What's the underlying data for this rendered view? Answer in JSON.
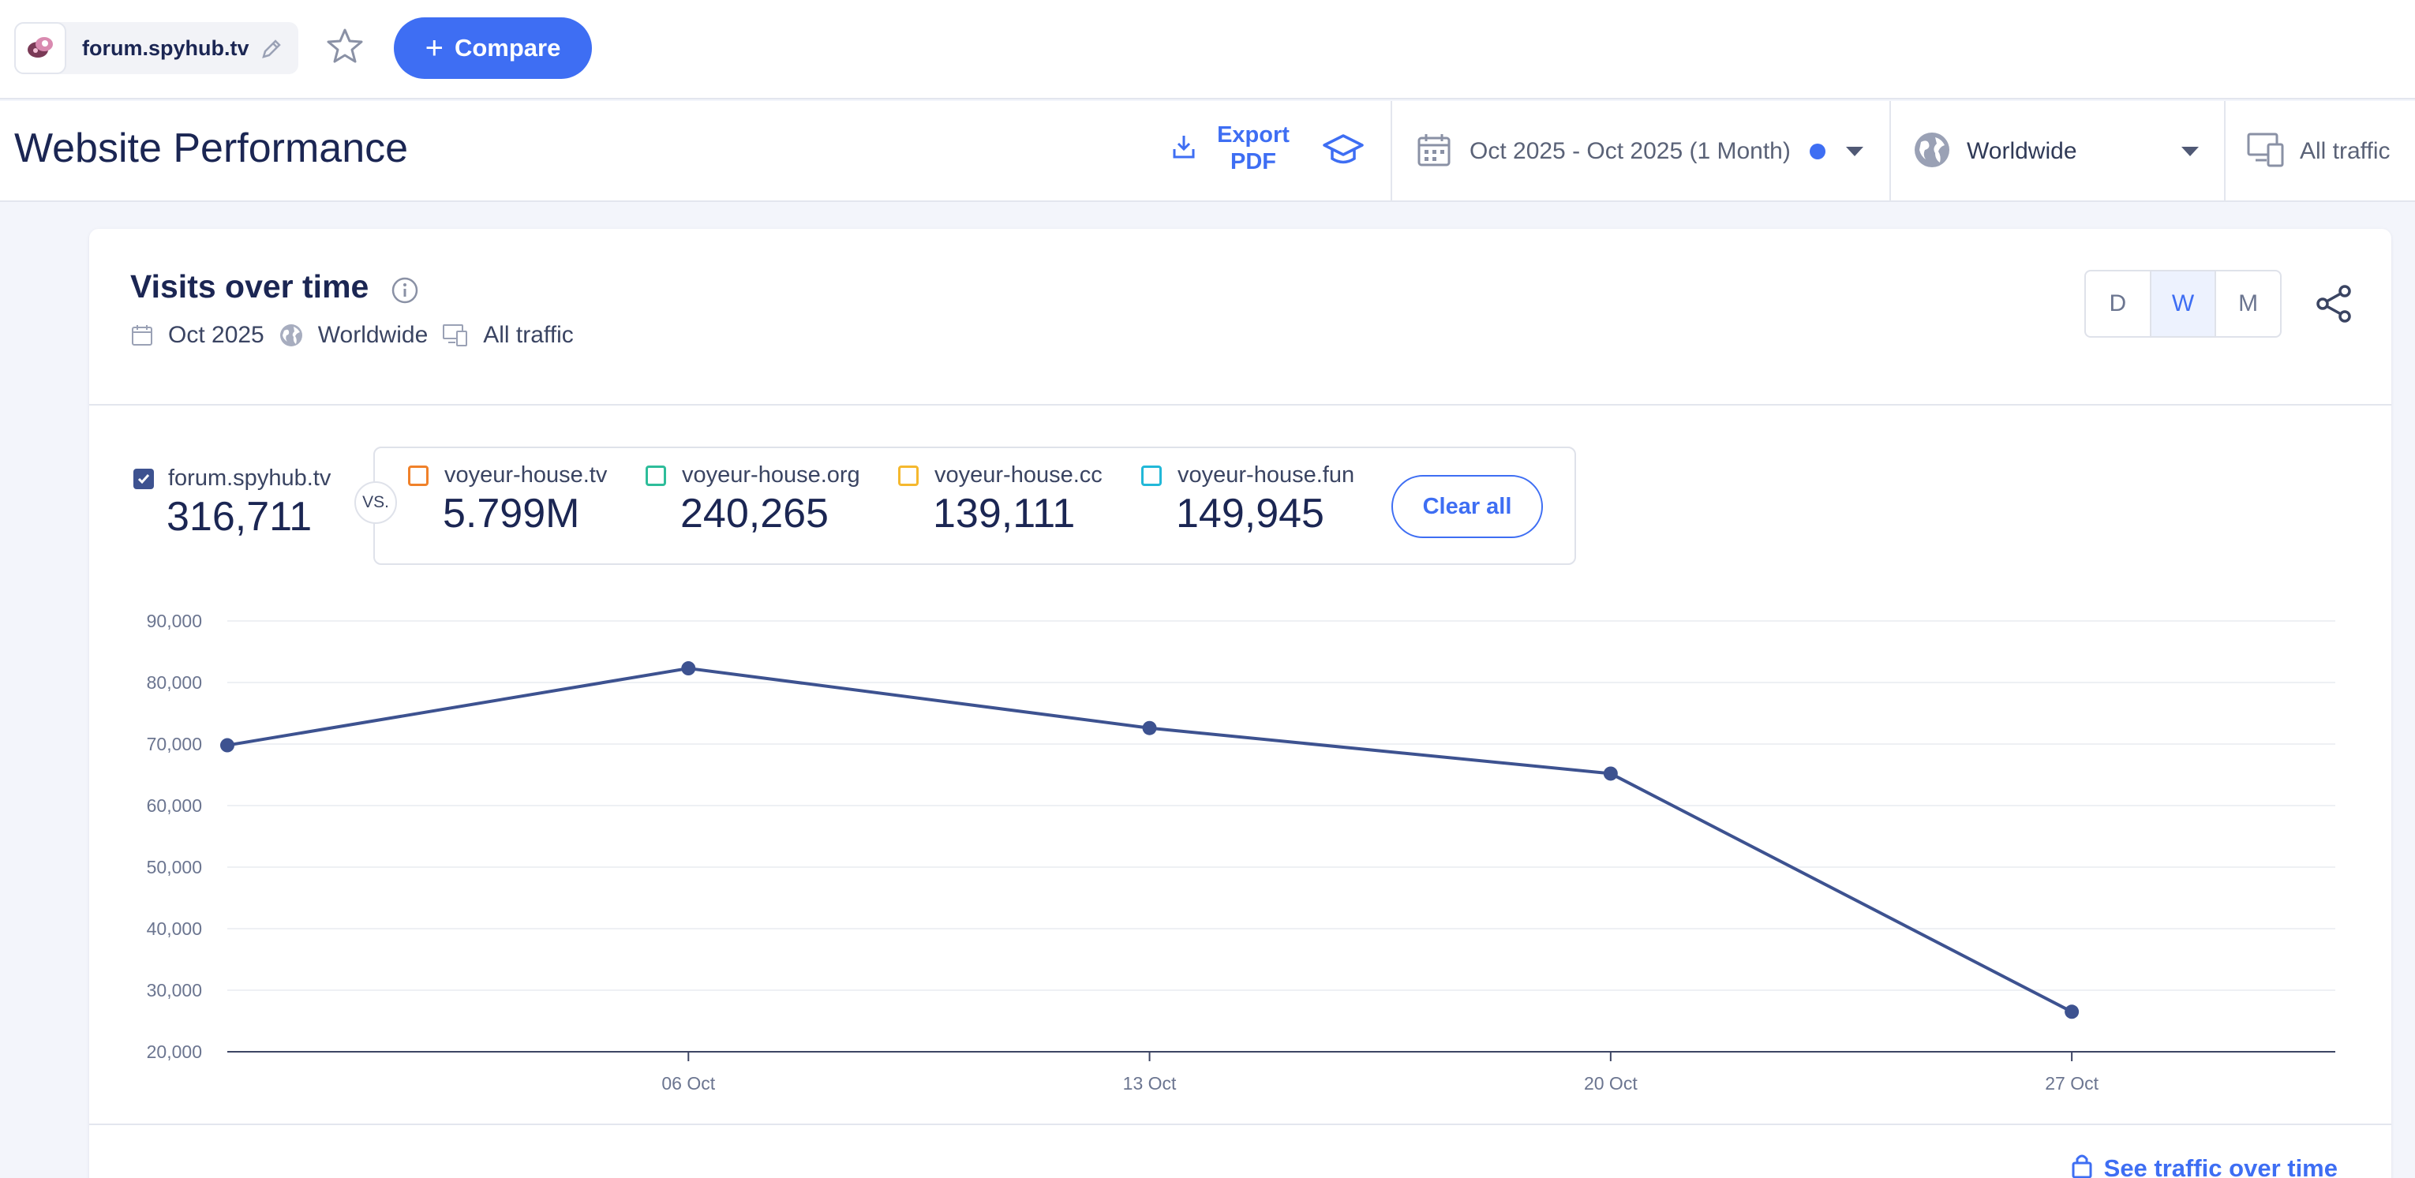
{
  "topbar": {
    "site_name": "forum.spyhub.tv",
    "compare_label": "Compare"
  },
  "header": {
    "title": "Website Performance",
    "export_label_line1": "Export",
    "export_label_line2": "PDF",
    "date_range": "Oct 2025 - Oct 2025 (1 Month)",
    "geo": "Worldwide",
    "traffic": "All traffic"
  },
  "card": {
    "title": "Visits over time",
    "meta_date": "Oct 2025",
    "meta_geo": "Worldwide",
    "meta_traffic": "All traffic",
    "granularity": [
      "D",
      "W",
      "M"
    ],
    "active_granularity": "W",
    "main_site": {
      "name": "forum.spyhub.tv",
      "value": "316,711",
      "color": "#3d5290"
    },
    "vs_label": "VS.",
    "competitors": [
      {
        "name": "voyeur-house.tv",
        "value": "5.799M",
        "color": "#f0812a"
      },
      {
        "name": "voyeur-house.org",
        "value": "240,265",
        "color": "#2ebd9a"
      },
      {
        "name": "voyeur-house.cc",
        "value": "139,111",
        "color": "#f5b82e"
      },
      {
        "name": "voyeur-house.fun",
        "value": "149,945",
        "color": "#22b8d8"
      }
    ],
    "clear_all_label": "Clear all",
    "see_traffic_label": "See traffic over time"
  },
  "chart_data": {
    "type": "line",
    "y_ticks": [
      "90,000",
      "80,000",
      "70,000",
      "60,000",
      "50,000",
      "40,000",
      "30,000",
      "20,000"
    ],
    "ylim": [
      20000,
      90000
    ],
    "x_ticks": [
      "06 Oct",
      "13 Oct",
      "20 Oct",
      "27 Oct"
    ],
    "grid": true,
    "series": [
      {
        "name": "forum.spyhub.tv",
        "color": "#3d5290",
        "x": [
          "2025-09-29",
          "2025-10-06",
          "2025-10-13",
          "2025-10-20",
          "2025-10-27"
        ],
        "values": [
          69800,
          82300,
          72600,
          65200,
          26500
        ]
      }
    ]
  }
}
